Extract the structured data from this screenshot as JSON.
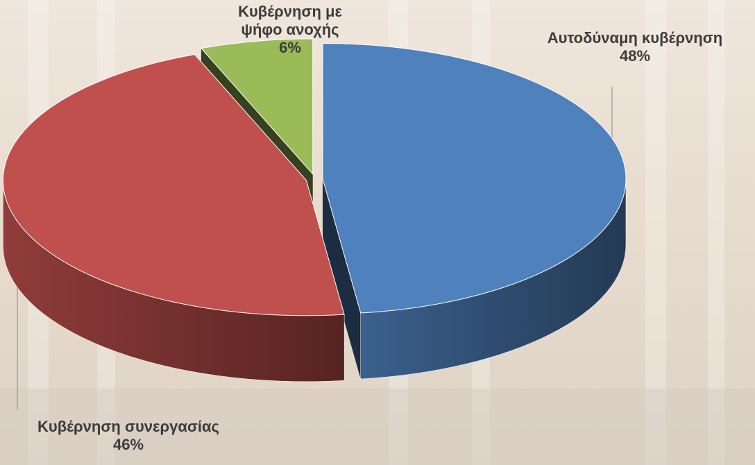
{
  "chart_data": {
    "type": "pie",
    "categories": [
      "Αυτοδύναμη κυβέρνηση",
      "Κυβέρνηση συνεργασίας",
      "Κυβέρνηση με ψήφο ανοχής"
    ],
    "values": [
      48,
      46,
      6
    ],
    "value_labels": [
      "48%",
      "46%",
      "6%"
    ],
    "colors": [
      "#4f81bd",
      "#c0504d",
      "#9bbb59"
    ]
  }
}
